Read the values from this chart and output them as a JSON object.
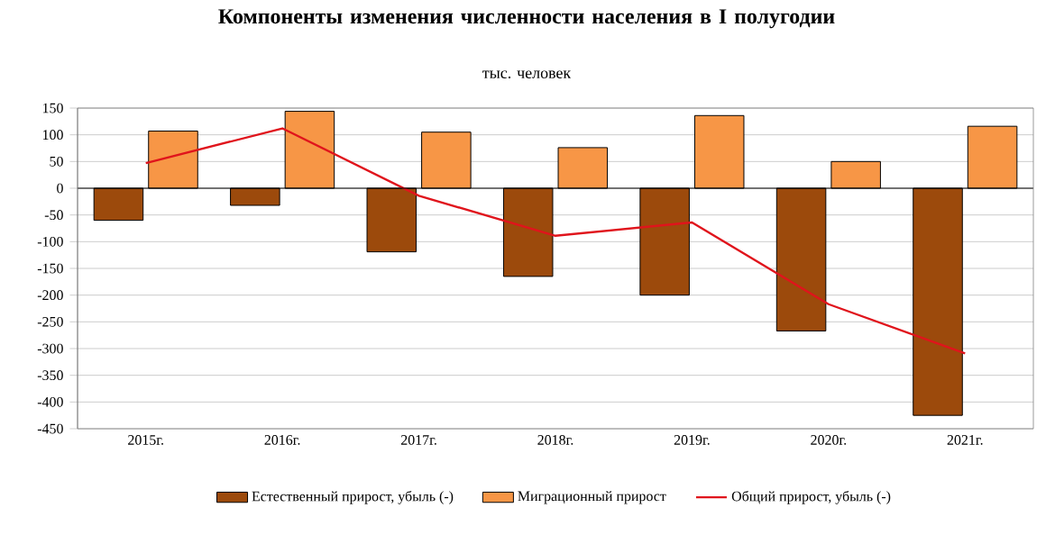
{
  "chart_data": {
    "type": "bar",
    "title": "Компоненты изменения численности населения в I полугодии",
    "subtitle": "тыс. человек",
    "categories": [
      "2015г.",
      "2016г.",
      "2017г.",
      "2018г.",
      "2019г.",
      "2020г.",
      "2021г."
    ],
    "series": [
      {
        "name": "Естественный прирост, убыль (-)",
        "color": "#9c4a0c",
        "values": [
          -60,
          -32,
          -119,
          -165,
          -200,
          -267,
          -425
        ]
      },
      {
        "name": "Миграционный прирост",
        "color": "#f79646",
        "values": [
          107,
          144,
          105,
          76,
          136,
          50,
          116
        ]
      },
      {
        "name": "Общий прирост, убыль (-)",
        "color": "#e0141c",
        "type": "line",
        "values": [
          47,
          112,
          -14,
          -89,
          -64,
          -217,
          -309
        ]
      }
    ],
    "ylim": [
      -450,
      150
    ],
    "yticks": [
      -450,
      -400,
      -350,
      -300,
      -250,
      -200,
      -150,
      -100,
      -50,
      0,
      50,
      100,
      150
    ],
    "grid": "y",
    "legend": "bottom"
  }
}
